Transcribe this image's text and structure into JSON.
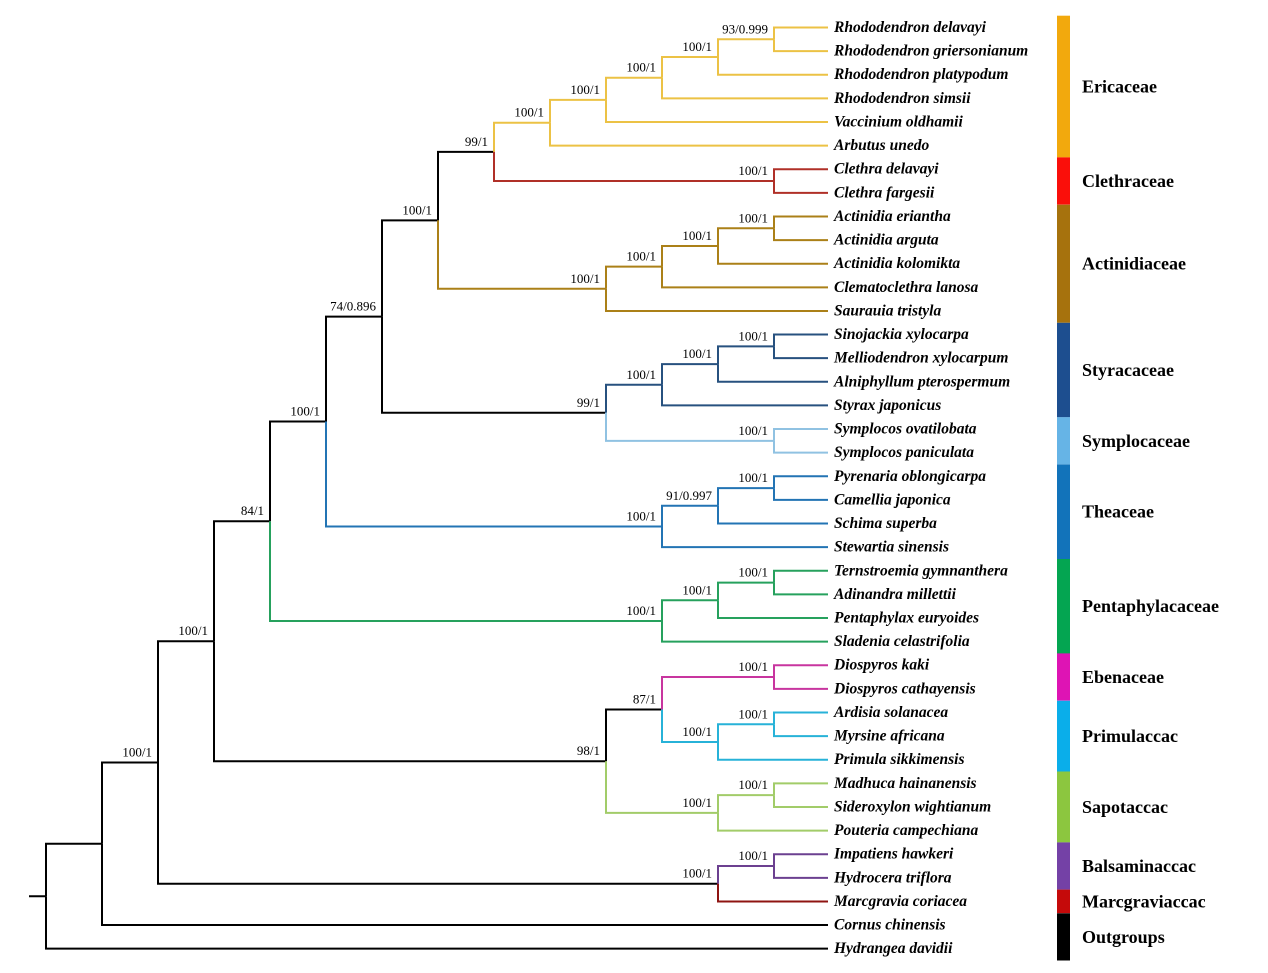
{
  "figure": {
    "type": "phylogenetic-tree-cladogram",
    "background": "#ffffff",
    "backbone_color": "#000000"
  },
  "families": [
    {
      "id": "Ericaceae",
      "label": "Ericaceae",
      "bar_color": "#F2A90D",
      "branch_color": "#ECC245"
    },
    {
      "id": "Clethraceae",
      "label": "Clethraceae",
      "bar_color": "#FA0F0A",
      "branch_color": "#B03028"
    },
    {
      "id": "Actinidiaceae",
      "label": "Actinidiaceae",
      "bar_color": "#A6720D",
      "branch_color": "#AB8018"
    },
    {
      "id": "Styracaceae",
      "label": "Styracaceae",
      "bar_color": "#1D4E8F",
      "branch_color": "#27517F"
    },
    {
      "id": "Symplocaceae",
      "label": "Symplocaceae",
      "bar_color": "#66B4E6",
      "branch_color": "#90C2E2"
    },
    {
      "id": "Theaceae",
      "label": "Theaceae",
      "bar_color": "#1273BA",
      "branch_color": "#2374B4"
    },
    {
      "id": "Pentaphylacaceae",
      "label": "Pentaphylacaceae",
      "bar_color": "#04A551",
      "branch_color": "#26A15D"
    },
    {
      "id": "Ebenaceae",
      "label": "Ebenaceae",
      "bar_color": "#DE14B4",
      "branch_color": "#C8359F"
    },
    {
      "id": "Primulaceae",
      "label": "Primulaccac",
      "bar_color": "#0AAEEA",
      "branch_color": "#27B2D8"
    },
    {
      "id": "Sapotaceae",
      "label": "Sapotaccac",
      "bar_color": "#8CC63F",
      "branch_color": "#A2CC69"
    },
    {
      "id": "Balsaminaceae",
      "label": "Balsaminaccac",
      "bar_color": "#7441A6",
      "branch_color": "#6C4090"
    },
    {
      "id": "Marcgraviaceae",
      "label": "Marcgraviaccac",
      "bar_color": "#C50A0A",
      "branch_color": "#8F1412"
    },
    {
      "id": "Outgroups",
      "label": "Outgroups",
      "bar_color": "#000000",
      "branch_color": "#000000"
    }
  ],
  "tree": {
    "children": [
      {
        "children": [
          {
            "support": "100/1",
            "children": [
              {
                "support": "100/1",
                "children": [
                  {
                    "support": "84/1",
                    "children": [
                      {
                        "support": "100/1",
                        "children": [
                          {
                            "support": "74/0.896",
                            "children": [
                              {
                                "support": "100/1",
                                "children": [
                                  {
                                    "support": "99/1",
                                    "children": [
                                      {
                                        "support": "100/1",
                                        "children": [
                                          {
                                            "support": "100/1",
                                            "children": [
                                              {
                                                "support": "100/1",
                                                "children": [
                                                  {
                                                    "support": "100/1",
                                                    "children": [
                                                      {
                                                        "support": "93/0.999",
                                                        "children": [
                                                          {
                                                            "name": "Rhododendron delavayi",
                                                            "family": "Ericaceae"
                                                          },
                                                          {
                                                            "name": "Rhododendron griersonianum",
                                                            "family": "Ericaceae"
                                                          }
                                                        ]
                                                      },
                                                      {
                                                        "name": "Rhododendron platypodum",
                                                        "family": "Ericaceae"
                                                      }
                                                    ]
                                                  },
                                                  {
                                                    "name": "Rhododendron simsii",
                                                    "family": "Ericaceae"
                                                  }
                                                ]
                                              },
                                              {
                                                "name": "Vaccinium oldhamii",
                                                "family": "Ericaceae"
                                              }
                                            ]
                                          },
                                          {
                                            "name": "Arbutus unedo",
                                            "family": "Ericaceae"
                                          }
                                        ]
                                      },
                                      {
                                        "support": "100/1",
                                        "children": [
                                          {
                                            "name": "Clethra delavayi",
                                            "family": "Clethraceae"
                                          },
                                          {
                                            "name": "Clethra fargesii",
                                            "family": "Clethraceae"
                                          }
                                        ]
                                      }
                                    ]
                                  },
                                  {
                                    "support": "100/1",
                                    "children": [
                                      {
                                        "support": "100/1",
                                        "children": [
                                          {
                                            "support": "100/1",
                                            "children": [
                                              {
                                                "support": "100/1",
                                                "children": [
                                                  {
                                                    "name": "Actinidia eriantha",
                                                    "family": "Actinidiaceae"
                                                  },
                                                  {
                                                    "name": "Actinidia arguta",
                                                    "family": "Actinidiaceae"
                                                  }
                                                ]
                                              },
                                              {
                                                "name": "Actinidia kolomikta",
                                                "family": "Actinidiaceae"
                                              }
                                            ]
                                          },
                                          {
                                            "name": "Clematoclethra lanosa",
                                            "family": "Actinidiaceae"
                                          }
                                        ]
                                      },
                                      {
                                        "name": "Saurauia tristyla",
                                        "family": "Actinidiaceae"
                                      }
                                    ]
                                  }
                                ]
                              },
                              {
                                "support": "99/1",
                                "children": [
                                  {
                                    "support": "100/1",
                                    "children": [
                                      {
                                        "support": "100/1",
                                        "children": [
                                          {
                                            "support": "100/1",
                                            "children": [
                                              {
                                                "name": "Sinojackia xylocarpa",
                                                "family": "Styracaceae"
                                              },
                                              {
                                                "name": "Melliodendron xylocarpum",
                                                "family": "Styracaceae"
                                              }
                                            ]
                                          },
                                          {
                                            "name": "Alniphyllum pterospermum",
                                            "family": "Styracaceae"
                                          }
                                        ]
                                      },
                                      {
                                        "name": "Styrax japonicus",
                                        "family": "Styracaceae"
                                      }
                                    ]
                                  },
                                  {
                                    "support": "100/1",
                                    "children": [
                                      {
                                        "name": "Symplocos ovatilobata",
                                        "family": "Symplocaceae"
                                      },
                                      {
                                        "name": "Symplocos paniculata",
                                        "family": "Symplocaceae"
                                      }
                                    ]
                                  }
                                ]
                              }
                            ]
                          },
                          {
                            "support": "100/1",
                            "children": [
                              {
                                "support": "91/0.997",
                                "children": [
                                  {
                                    "support": "100/1",
                                    "children": [
                                      {
                                        "name": "Pyrenaria oblongicarpa",
                                        "family": "Theaceae"
                                      },
                                      {
                                        "name": "Camellia japonica",
                                        "family": "Theaceae"
                                      }
                                    ]
                                  },
                                  {
                                    "name": "Schima superba",
                                    "family": "Theaceae"
                                  }
                                ]
                              },
                              {
                                "name": "Stewartia sinensis",
                                "family": "Theaceae"
                              }
                            ]
                          }
                        ]
                      },
                      {
                        "support": "100/1",
                        "children": [
                          {
                            "support": "100/1",
                            "children": [
                              {
                                "support": "100/1",
                                "children": [
                                  {
                                    "name": "Ternstroemia gymnanthera",
                                    "family": "Pentaphylacaceae"
                                  },
                                  {
                                    "name": "Adinandra millettii",
                                    "family": "Pentaphylacaceae"
                                  }
                                ]
                              },
                              {
                                "name": "Pentaphylax euryoides",
                                "family": "Pentaphylacaceae"
                              }
                            ]
                          },
                          {
                            "name": "Sladenia celastrifolia",
                            "family": "Pentaphylacaceae"
                          }
                        ]
                      }
                    ]
                  },
                  {
                    "support": "98/1",
                    "children": [
                      {
                        "support": "87/1",
                        "children": [
                          {
                            "support": "100/1",
                            "children": [
                              {
                                "name": "Diospyros kaki",
                                "family": "Ebenaceae"
                              },
                              {
                                "name": "Diospyros cathayensis",
                                "family": "Ebenaceae"
                              }
                            ]
                          },
                          {
                            "support": "100/1",
                            "children": [
                              {
                                "support": "100/1",
                                "children": [
                                  {
                                    "name": "Ardisia solanacea",
                                    "family": "Primulaceae"
                                  },
                                  {
                                    "name": "Myrsine africana",
                                    "family": "Primulaceae"
                                  }
                                ]
                              },
                              {
                                "name": "Primula sikkimensis",
                                "family": "Primulaceae"
                              }
                            ]
                          }
                        ]
                      },
                      {
                        "support": "100/1",
                        "children": [
                          {
                            "support": "100/1",
                            "children": [
                              {
                                "name": "Madhuca hainanensis",
                                "family": "Sapotaceae"
                              },
                              {
                                "name": "Sideroxylon wightianum",
                                "family": "Sapotaceae"
                              }
                            ]
                          },
                          {
                            "name": "Pouteria campechiana",
                            "family": "Sapotaceae"
                          }
                        ]
                      }
                    ]
                  }
                ]
              },
              {
                "support": "100/1",
                "children": [
                  {
                    "support": "100/1",
                    "children": [
                      {
                        "name": "Impatiens hawkeri",
                        "family": "Balsaminaceae"
                      },
                      {
                        "name": "Hydrocera triflora",
                        "family": "Balsaminaceae"
                      }
                    ]
                  },
                  {
                    "name": "Marcgravia coriacea",
                    "family": "Marcgraviaceae"
                  }
                ]
              }
            ]
          },
          {
            "name": "Cornus chinensis",
            "family": "Outgroups"
          }
        ]
      },
      {
        "name": "Hydrangea davidii",
        "family": "Outgroups"
      }
    ]
  }
}
